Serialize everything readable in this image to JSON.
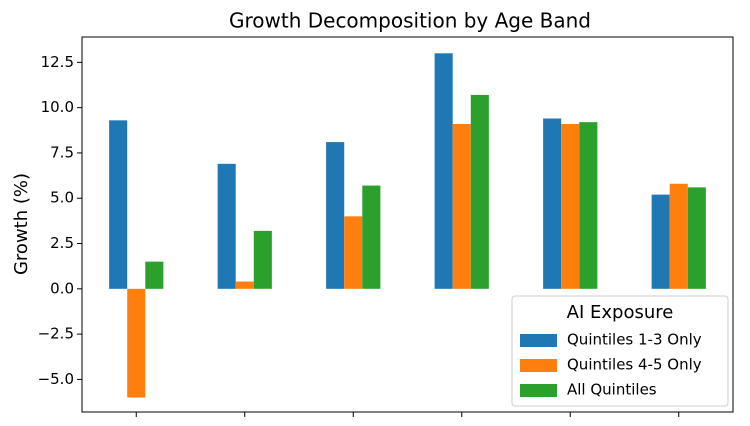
{
  "chart_data": {
    "type": "bar",
    "title": "Growth Decomposition by Age Band",
    "y_label": "Growth (%)",
    "categories": [
      null,
      null,
      null,
      null,
      null,
      null
    ],
    "series": [
      {
        "name": "Quintiles 1-3 Only",
        "color": "#1f77b4",
        "values": [
          9.3,
          6.9,
          8.1,
          13.0,
          9.4,
          5.2
        ]
      },
      {
        "name": "Quintiles 4-5 Only",
        "color": "#ff7f0e",
        "values": [
          -6.0,
          0.4,
          4.0,
          9.1,
          9.1,
          5.8
        ]
      },
      {
        "name": "All Quintiles",
        "color": "#2ca02c",
        "values": [
          1.5,
          3.2,
          5.7,
          10.7,
          9.2,
          5.6
        ]
      }
    ],
    "ylim": [
      -6.8,
      13.9
    ],
    "yticks": [
      {
        "value": -5,
        "label": "−5.0"
      },
      {
        "value": -2.5,
        "label": "−2.5"
      },
      {
        "value": 0,
        "label": "0.0"
      },
      2.5,
      {
        "value": 5,
        "label": "5.0"
      },
      7.5,
      {
        "value": 10,
        "label": "10.0"
      },
      12.5
    ],
    "legend_title": "AI Exposure",
    "legend_position": "lower right",
    "grid": false
  }
}
